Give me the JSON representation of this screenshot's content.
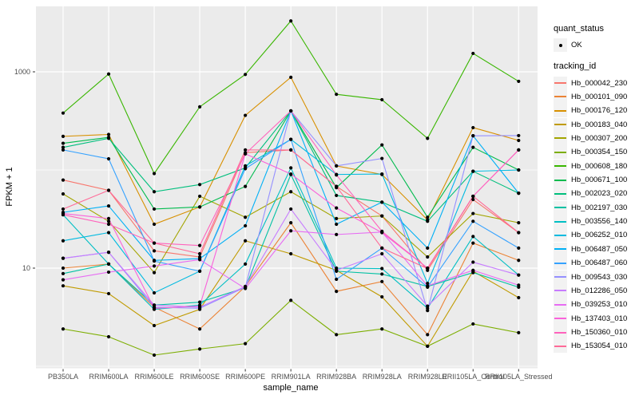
{
  "figure": {
    "x_axis_title": "sample_name",
    "y_axis_title": "FPKM + 1"
  },
  "legend": {
    "quant_status_title": "quant_status",
    "quant_status_ok_label": "OK",
    "quant_status_marker_color": "#000000",
    "tracking_id_title": "tracking_id",
    "key_background": "#F2F2F2"
  },
  "chart_data": {
    "type": "line",
    "title": "",
    "xlabel": "sample_name",
    "ylabel": "FPKM + 1",
    "y_scale": "log10",
    "y_breaks": [
      10,
      1000
    ],
    "y_break_labels": [
      "10",
      "1000"
    ],
    "y_minor_breaks": [
      1,
      100
    ],
    "ylim": [
      0.9,
      4600
    ],
    "grid": "on",
    "panel_background": "#EBEBEB",
    "grid_color": "#FFFFFF",
    "point_color": "#000000",
    "legend_position": "right",
    "categories": [
      "PB350LA",
      "RRIM600LA",
      "RRIM600LE",
      "RRIM600SE",
      "RRIM600PE",
      "RRIM901LA",
      "RRIM928BA",
      "RRIM928LA",
      "RRIM928LE",
      "RRII105LA_Control",
      "RRII105LA_Stressed"
    ],
    "series": [
      {
        "name": "Hb_000042_230",
        "color": "#F8766D",
        "values": [
          79,
          62,
          15,
          13,
          150,
          160,
          68,
          34,
          9.5,
          50,
          23
        ]
      },
      {
        "name": "Hb_000101_090",
        "color": "#EB8335",
        "values": [
          10,
          11,
          4.0,
          2.4,
          6.5,
          29,
          5.8,
          7.3,
          2.1,
          18,
          12
        ]
      },
      {
        "name": "Hb_000176_120",
        "color": "#D89000",
        "values": [
          220,
          230,
          28,
          42,
          360,
          880,
          110,
          90,
          31,
          270,
          200
        ]
      },
      {
        "name": "Hb_000183_040",
        "color": "#C09B00",
        "values": [
          6.6,
          5.5,
          2.6,
          3.8,
          19,
          14,
          9.5,
          5.1,
          1.6,
          9.3,
          5.0
        ]
      },
      {
        "name": "Hb_000307_200",
        "color": "#A3A500",
        "values": [
          57,
          30,
          9.0,
          54,
          33,
          60,
          32,
          34,
          13,
          36,
          29
        ]
      },
      {
        "name": "Hb_000354_150",
        "color": "#7CAE00",
        "values": [
          2.4,
          2.0,
          1.3,
          1.5,
          1.7,
          4.7,
          2.1,
          2.4,
          1.6,
          2.7,
          2.2
        ]
      },
      {
        "name": "Hb_000608_180",
        "color": "#39B600",
        "values": [
          380,
          950,
          92,
          440,
          940,
          3300,
          590,
          520,
          210,
          1540,
          800
        ]
      },
      {
        "name": "Hb_000671_100",
        "color": "#00BB4E",
        "values": [
          187,
          215,
          40,
          42,
          68,
          400,
          66,
          180,
          33,
          170,
          100
        ]
      },
      {
        "name": "Hb_002023_020",
        "color": "#00BF7D",
        "values": [
          170,
          210,
          60,
          71,
          105,
          400,
          55,
          47,
          30,
          97,
          58
        ]
      },
      {
        "name": "Hb_002197_030",
        "color": "#00C1A3",
        "values": [
          8.8,
          11,
          4.2,
          4.5,
          6.3,
          90,
          9.3,
          8.7,
          6.5,
          9.0,
          6.4
        ]
      },
      {
        "name": "Hb_003556_140",
        "color": "#00BFC4",
        "values": [
          35,
          11,
          3.8,
          4.2,
          11,
          105,
          10,
          9.9,
          3.9,
          21,
          8.5
        ]
      },
      {
        "name": "Hb_006252_010",
        "color": "#00BAE0",
        "values": [
          19,
          23,
          5.6,
          9.3,
          110,
          205,
          90,
          91,
          7.0,
          97,
          100
        ]
      },
      {
        "name": "Hb_006487_050",
        "color": "#00B0F6",
        "values": [
          37,
          43,
          12,
          12.5,
          27,
          400,
          28,
          47,
          16,
          223,
          58
        ]
      },
      {
        "name": "Hb_006487_060",
        "color": "#35A2FF",
        "values": [
          160,
          130,
          11.8,
          9.3,
          103,
          205,
          7.7,
          16,
          6.4,
          30,
          16
        ]
      },
      {
        "name": "Hb_009543_030",
        "color": "#9590FF",
        "values": [
          12.6,
          14.5,
          4.0,
          3.9,
          6.4,
          400,
          110,
          131,
          3.7,
          223,
          224
        ]
      },
      {
        "name": "Hb_012286_050",
        "color": "#C77CFF",
        "values": [
          12.6,
          14.5,
          4.2,
          4.0,
          6.5,
          40,
          9.5,
          14,
          4.1,
          11.5,
          8.5
        ]
      },
      {
        "name": "Hb_039253_010",
        "color": "#E76BF3",
        "values": [
          7.6,
          9.1,
          10.5,
          12.2,
          6.2,
          24,
          22,
          23.3,
          6.6,
          9.5,
          6.7
        ]
      },
      {
        "name": "Hb_137403_010",
        "color": "#FA62DB",
        "values": [
          36,
          32,
          3.9,
          4.1,
          146,
          91,
          41,
          23,
          10,
          54,
          160
        ]
      },
      {
        "name": "Hb_150360_010",
        "color": "#FF62BC",
        "values": [
          35,
          28,
          18,
          17,
          146,
          400,
          89,
          23.7,
          10,
          54,
          160
        ]
      },
      {
        "name": "Hb_153054_010",
        "color": "#FF6A98",
        "values": [
          40,
          62,
          18,
          14,
          160,
          160,
          68,
          16,
          9.9,
          54,
          23
        ]
      }
    ]
  }
}
